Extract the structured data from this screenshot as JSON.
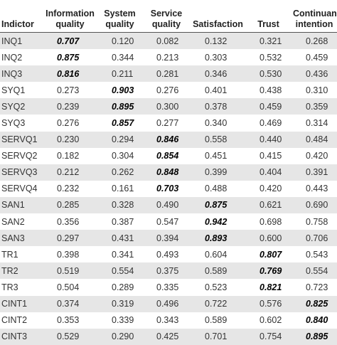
{
  "table": {
    "header": [
      "Indictor",
      "Information quality",
      "System quality",
      "Service quality",
      "Satisfaction",
      "Trust",
      "Continuance intention"
    ],
    "rows": [
      [
        "INQ1",
        "0.707",
        "0.120",
        "0.082",
        "0.132",
        "0.321",
        "0.268"
      ],
      [
        "INQ2",
        "0.875",
        "0.344",
        "0.213",
        "0.303",
        "0.532",
        "0.459"
      ],
      [
        "INQ3",
        "0.816",
        "0.211",
        "0.281",
        "0.346",
        "0.530",
        "0.436"
      ],
      [
        "SYQ1",
        "0.273",
        "0.903",
        "0.276",
        "0.401",
        "0.438",
        "0.310"
      ],
      [
        "SYQ2",
        "0.239",
        "0.895",
        "0.300",
        "0.378",
        "0.459",
        "0.359"
      ],
      [
        "SYQ3",
        "0.276",
        "0.857",
        "0.277",
        "0.340",
        "0.469",
        "0.314"
      ],
      [
        "SERVQ1",
        "0.230",
        "0.294",
        "0.846",
        "0.558",
        "0.440",
        "0.484"
      ],
      [
        "SERVQ2",
        "0.182",
        "0.304",
        "0.854",
        "0.451",
        "0.415",
        "0.420"
      ],
      [
        "SERVQ3",
        "0.212",
        "0.262",
        "0.848",
        "0.399",
        "0.404",
        "0.391"
      ],
      [
        "SERVQ4",
        "0.232",
        "0.161",
        "0.703",
        "0.488",
        "0.420",
        "0.443"
      ],
      [
        "SAN1",
        "0.285",
        "0.328",
        "0.490",
        "0.875",
        "0.621",
        "0.690"
      ],
      [
        "SAN2",
        "0.356",
        "0.387",
        "0.547",
        "0.942",
        "0.698",
        "0.758"
      ],
      [
        "SAN3",
        "0.297",
        "0.431",
        "0.394",
        "0.893",
        "0.600",
        "0.706"
      ],
      [
        "TR1",
        "0.398",
        "0.341",
        "0.493",
        "0.604",
        "0.807",
        "0.543"
      ],
      [
        "TR2",
        "0.519",
        "0.554",
        "0.375",
        "0.589",
        "0.769",
        "0.554"
      ],
      [
        "TR3",
        "0.504",
        "0.289",
        "0.335",
        "0.523",
        "0.821",
        "0.723"
      ],
      [
        "CINT1",
        "0.374",
        "0.319",
        "0.496",
        "0.722",
        "0.576",
        "0.825"
      ],
      [
        "CINT2",
        "0.353",
        "0.339",
        "0.343",
        "0.589",
        "0.602",
        "0.840"
      ],
      [
        "CINT3",
        "0.529",
        "0.290",
        "0.425",
        "0.701",
        "0.754",
        "0.895"
      ]
    ]
  }
}
